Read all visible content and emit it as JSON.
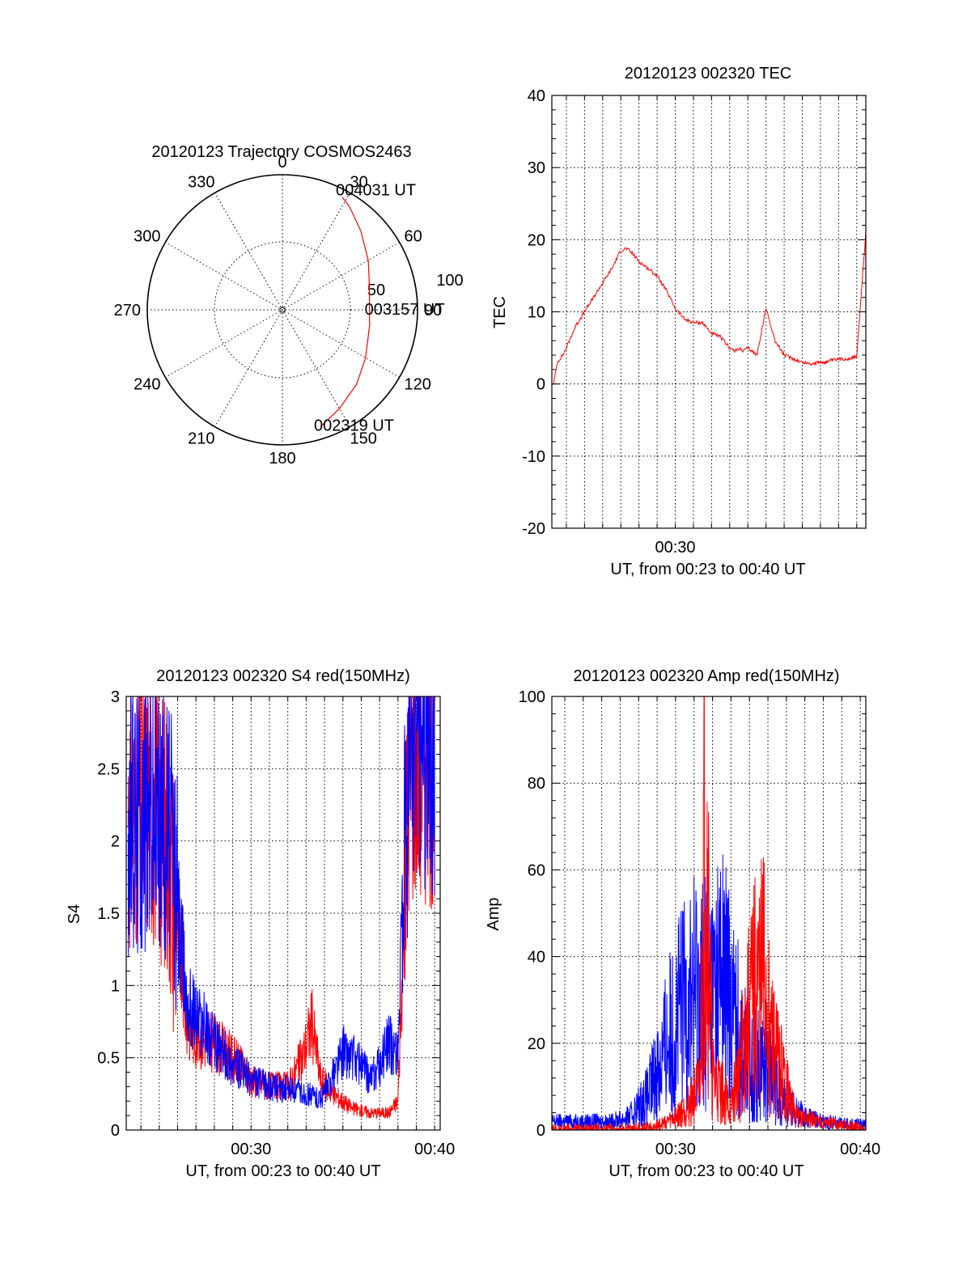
{
  "chart_data": [
    {
      "type": "polar",
      "title": "20120123 Trajectory COSMOS2463",
      "angle_labels": [
        "0",
        "30",
        "60",
        "90",
        "120",
        "150",
        "180",
        "210",
        "240",
        "270",
        "300",
        "330"
      ],
      "radial_labels": [
        "50",
        "100"
      ],
      "trajectory": {
        "color": "#ff0000",
        "points": [
          {
            "az": 162,
            "el": 8
          },
          {
            "az": 150,
            "el": 14
          },
          {
            "az": 135,
            "el": 20
          },
          {
            "az": 120,
            "el": 26
          },
          {
            "az": 100,
            "el": 31
          },
          {
            "az": 90,
            "el": 32
          },
          {
            "az": 75,
            "el": 30
          },
          {
            "az": 60,
            "el": 24
          },
          {
            "az": 45,
            "el": 16
          },
          {
            "az": 33,
            "el": 8
          },
          {
            "az": 28,
            "el": 5
          }
        ]
      },
      "annotations": [
        {
          "text": "002319 UT",
          "az": 162,
          "el": 8
        },
        {
          "text": "003157 UT",
          "az": 90,
          "el": 32
        },
        {
          "text": "004031 UT",
          "az": 28,
          "el": 5
        }
      ]
    },
    {
      "type": "line",
      "title": "20120123 002320 TEC",
      "xlabel": "UT, from 00:23 to 00:40 UT",
      "ylabel": "TEC",
      "xlim": [
        23.2,
        40.5
      ],
      "ylim": [
        -20,
        40
      ],
      "yticks": [
        "-20",
        "-10",
        "0",
        "10",
        "20",
        "30",
        "40"
      ],
      "xticks": [
        {
          "x": 30,
          "label": "00:30"
        }
      ],
      "grid": true,
      "series": [
        {
          "color": "#ff0000",
          "x": [
            23.3,
            23.5,
            23.8,
            24.0,
            24.5,
            25.0,
            25.5,
            26.0,
            26.5,
            27.0,
            27.3,
            27.6,
            28.0,
            28.5,
            29.0,
            29.5,
            30.0,
            30.5,
            31.0,
            31.5,
            32.0,
            32.5,
            33.0,
            33.3,
            33.5,
            33.7,
            34.0,
            34.5,
            35.0,
            35.5,
            36.0,
            37.0,
            37.5,
            38.0,
            38.2,
            38.5,
            39.0,
            39.5,
            40.0,
            40.5
          ],
          "y": [
            0,
            3,
            4,
            5,
            8,
            10,
            12,
            14,
            16,
            18.5,
            18.8,
            18.2,
            17,
            16,
            15,
            13,
            10.5,
            9,
            8.5,
            8.5,
            7,
            6.5,
            5,
            4.5,
            5,
            4.5,
            5,
            4,
            10.5,
            6,
            4,
            3,
            2.8,
            3,
            3,
            3.2,
            3.4,
            3.5,
            3.8,
            21
          ]
        }
      ]
    },
    {
      "type": "line",
      "title": "20120123 002320 S4 red(150MHz)",
      "xlabel": "UT, from 00:23 to 00:40 UT",
      "ylabel": "S4",
      "xlim": [
        23.2,
        40.3
      ],
      "ylim": [
        0,
        3
      ],
      "yticks": [
        "0",
        "0.5",
        "1",
        "1.5",
        "2",
        "2.5",
        "3"
      ],
      "xticks": [
        {
          "x": 30,
          "label": "00:30"
        },
        {
          "x": 40,
          "label": "00:40"
        }
      ],
      "grid": true,
      "series": [
        {
          "color": "#ff0000",
          "x": [
            23.3,
            24.5,
            25.5,
            26.0,
            26.5,
            27.0,
            28.0,
            29.0,
            30.0,
            31.0,
            32.0,
            32.8,
            33.3,
            33.8,
            34.5,
            35.5,
            36.5,
            37.5,
            38.0,
            38.6,
            39.0,
            40.0
          ],
          "y": [
            2.2,
            2.3,
            2.0,
            1.4,
            0.75,
            0.65,
            0.6,
            0.5,
            0.35,
            0.3,
            0.3,
            0.5,
            0.75,
            0.35,
            0.25,
            0.15,
            0.12,
            0.12,
            0.2,
            2.5,
            2.6,
            2.5
          ]
        },
        {
          "color": "#0000ff",
          "x": [
            23.3,
            24.5,
            25.5,
            26.0,
            26.5,
            27.0,
            28.0,
            29.0,
            30.0,
            31.0,
            32.0,
            33.0,
            33.8,
            34.2,
            35.0,
            35.5,
            36.0,
            36.5,
            37.0,
            37.5,
            38.0,
            38.6,
            39.0,
            40.0
          ],
          "y": [
            2.1,
            2.2,
            2.1,
            1.5,
            0.9,
            0.8,
            0.6,
            0.45,
            0.35,
            0.3,
            0.28,
            0.25,
            0.22,
            0.3,
            0.55,
            0.5,
            0.45,
            0.35,
            0.45,
            0.6,
            0.55,
            2.6,
            2.7,
            2.6
          ]
        }
      ]
    },
    {
      "type": "line",
      "title": "20120123 002320 Amp red(150MHz)",
      "xlabel": "UT, from 00:23 to 00:40 UT",
      "ylabel": "Amp",
      "xlim": [
        23.3,
        40.3
      ],
      "ylim": [
        0,
        100
      ],
      "yticks": [
        "0",
        "20",
        "40",
        "60",
        "80",
        "100"
      ],
      "xticks": [
        {
          "x": 30,
          "label": "00:30"
        },
        {
          "x": 40,
          "label": "00:40"
        }
      ],
      "grid": true,
      "series": [
        {
          "color": "#0000ff",
          "x": [
            23.3,
            25.0,
            26.5,
            27.5,
            28.5,
            29.5,
            30.5,
            31.0,
            31.5,
            32.0,
            32.5,
            33.0,
            33.5,
            34.0,
            34.5,
            35.0,
            35.5,
            36.0,
            37.0,
            38.0,
            40.3
          ],
          "y": [
            2,
            2,
            2,
            3,
            8,
            20,
            30,
            32,
            33,
            32,
            36,
            30,
            22,
            15,
            15,
            14,
            10,
            6,
            3,
            2,
            1
          ]
        },
        {
          "color": "#ff0000",
          "x": [
            23.3,
            28.0,
            29.0,
            30.0,
            30.8,
            31.3,
            31.6,
            32.0,
            32.6,
            33.0,
            33.5,
            34.2,
            34.8,
            35.2,
            35.8,
            36.5,
            40.3
          ],
          "y": [
            0,
            0,
            1,
            3,
            6,
            10,
            78,
            12,
            8,
            5,
            15,
            30,
            35,
            20,
            12,
            3,
            0
          ]
        }
      ]
    }
  ]
}
